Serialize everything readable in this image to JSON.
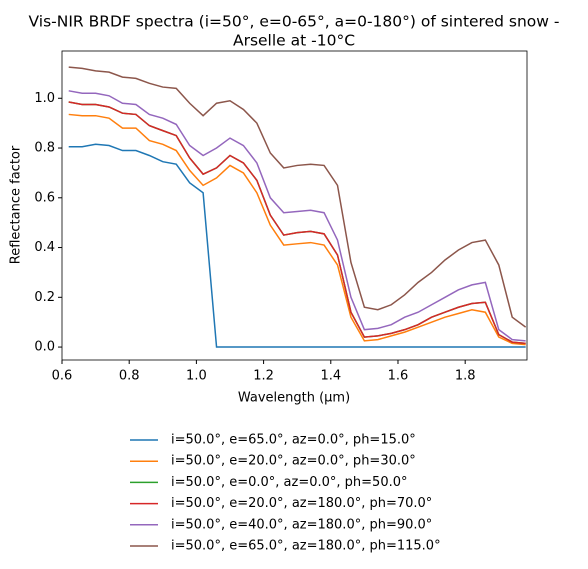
{
  "chart_data": {
    "type": "line",
    "title": [
      "Vis-NIR BRDF spectra (i=50°, e=0-65°, a=0-180°) of sintered snow -",
      "Arselle at -10°C"
    ],
    "xlabel": "Wavelength (μm)",
    "ylabel": "Reflectance factor",
    "xlim": [
      0.6,
      1.984
    ],
    "ylim": [
      -0.052,
      1.19
    ],
    "xticks": [
      0.6,
      0.8,
      {
        "value": 1,
        "label": "1.0"
      },
      1.2,
      1.4,
      1.6,
      1.8
    ],
    "yticks": [
      {
        "value": 0,
        "label": "0.0"
      },
      0.2,
      0.4,
      0.6,
      0.8,
      {
        "value": 1,
        "label": "1.0"
      }
    ],
    "legend": "below",
    "x": [
      0.62,
      0.66,
      0.7,
      0.74,
      0.78,
      0.82,
      0.86,
      0.9,
      0.94,
      0.98,
      1.02,
      1.06,
      1.1,
      1.14,
      1.18,
      1.22,
      1.26,
      1.3,
      1.34,
      1.38,
      1.42,
      1.46,
      1.5,
      1.54,
      1.58,
      1.62,
      1.66,
      1.7,
      1.74,
      1.78,
      1.82,
      1.86,
      1.9,
      1.94,
      1.98
    ],
    "series": [
      {
        "name": "i=50.0°, e=65.0°, az=0.0°, ph=15.0°",
        "color": "#1f77b4",
        "values": [
          0.805,
          0.805,
          0.815,
          0.81,
          0.79,
          0.79,
          0.77,
          0.745,
          0.735,
          0.66,
          0.62,
          0,
          0,
          0,
          0,
          0,
          0,
          0,
          0,
          0,
          0,
          0,
          0,
          0,
          0,
          0,
          0,
          0,
          0,
          0,
          0,
          0,
          0,
          0,
          0
        ]
      },
      {
        "name": "i=50.0°, e=20.0°, az=0.0°, ph=30.0°",
        "color": "#ff7f0e",
        "values": [
          0.935,
          0.93,
          0.93,
          0.92,
          0.88,
          0.88,
          0.83,
          0.815,
          0.79,
          0.71,
          0.65,
          0.68,
          0.73,
          0.7,
          0.62,
          0.49,
          0.41,
          0.415,
          0.42,
          0.41,
          0.33,
          0.12,
          0.025,
          0.03,
          0.045,
          0.06,
          0.08,
          0.1,
          0.12,
          0.135,
          0.15,
          0.14,
          0.04,
          0.015,
          0.01
        ]
      },
      {
        "name": "i=50.0°, e=0.0°, az=0.0°, ph=50.0°",
        "color": "#2ca02c",
        "values": [
          0.985,
          0.975,
          0.975,
          0.965,
          0.94,
          0.935,
          0.89,
          0.87,
          0.85,
          0.76,
          0.695,
          0.72,
          0.77,
          0.74,
          0.67,
          0.53,
          0.45,
          0.46,
          0.465,
          0.455,
          0.37,
          0.14,
          0.04,
          0.045,
          0.055,
          0.07,
          0.09,
          0.12,
          0.14,
          0.16,
          0.175,
          0.18,
          0.05,
          0.02,
          0.015
        ]
      },
      {
        "name": "i=50.0°, e=20.0°, az=180.0°, ph=70.0°",
        "color": "#d62728",
        "values": [
          0.985,
          0.975,
          0.975,
          0.965,
          0.94,
          0.935,
          0.89,
          0.87,
          0.85,
          0.76,
          0.695,
          0.72,
          0.77,
          0.74,
          0.67,
          0.53,
          0.45,
          0.46,
          0.465,
          0.455,
          0.37,
          0.14,
          0.04,
          0.045,
          0.055,
          0.07,
          0.09,
          0.12,
          0.14,
          0.16,
          0.175,
          0.18,
          0.05,
          0.02,
          0.015
        ]
      },
      {
        "name": "i=50.0°, e=40.0°, az=180.0°, ph=90.0°",
        "color": "#9467bd",
        "values": [
          1.03,
          1.02,
          1.02,
          1.01,
          0.98,
          0.975,
          0.935,
          0.92,
          0.895,
          0.81,
          0.77,
          0.8,
          0.84,
          0.81,
          0.74,
          0.6,
          0.54,
          0.545,
          0.55,
          0.54,
          0.43,
          0.2,
          0.07,
          0.075,
          0.09,
          0.12,
          0.14,
          0.17,
          0.2,
          0.23,
          0.25,
          0.26,
          0.07,
          0.03,
          0.025
        ]
      },
      {
        "name": "i=50.0°, e=65.0°, az=180.0°, ph=115.0°",
        "color": "#8c564b",
        "values": [
          1.125,
          1.12,
          1.11,
          1.105,
          1.085,
          1.08,
          1.06,
          1.045,
          1.04,
          0.98,
          0.93,
          0.98,
          0.99,
          0.955,
          0.9,
          0.78,
          0.72,
          0.73,
          0.735,
          0.73,
          0.65,
          0.34,
          0.16,
          0.15,
          0.17,
          0.21,
          0.26,
          0.3,
          0.35,
          0.39,
          0.42,
          0.43,
          0.33,
          0.12,
          0.08
        ]
      }
    ]
  }
}
